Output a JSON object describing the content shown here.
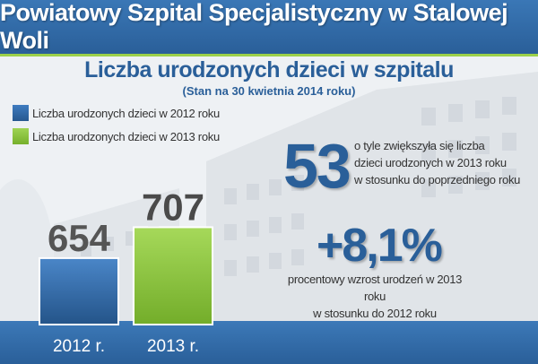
{
  "header": {
    "title": "Powiatowy Szpital Specjalistyczny w  Stalowej Woli"
  },
  "chart_data": {
    "type": "bar",
    "title": "Liczba urodzonych dzieci w szpitalu",
    "subtitle": "(Stan na 30 kwietnia 2014 roku)",
    "categories": [
      "2012 r.",
      "2013 r."
    ],
    "series": [
      {
        "name": "Liczba urodzonych dzieci w 2012 roku",
        "values": [
          654,
          null
        ],
        "color": "#2f69ad"
      },
      {
        "name": "Liczba urodzonych dzieci w 2013 roku",
        "values": [
          null,
          707
        ],
        "color": "#8cc63f"
      }
    ],
    "values": [
      654,
      707
    ],
    "colors": [
      "#2f69ad",
      "#8cc63f"
    ],
    "value_label_colors": [
      "#555555",
      "#4a4a4a"
    ],
    "ylim": [
      540,
      720
    ],
    "grid": false,
    "legend": "top-left"
  },
  "legend": {
    "items": [
      {
        "label": "Liczba urodzonych dzieci w 2012 roku",
        "color": "#2f69ad"
      },
      {
        "label": "Liczba urodzonych dzieci w 2013 roku",
        "color": "#8cc63f"
      }
    ]
  },
  "stats": {
    "difference": {
      "value": "53",
      "text_lines": [
        "o tyle zwiększyła się liczba",
        "dzieci urodzonych w 2013 roku",
        "w stosunku do poprzedniego roku"
      ]
    },
    "growth": {
      "value": "+8,1%",
      "text_lines": [
        "procentowy wzrost urodzeń w 2013 roku",
        "w stosunku do 2012 roku"
      ]
    }
  },
  "colors": {
    "header": "#2a5f99",
    "accent_green": "#8cc63f",
    "title_blue": "#2a5f99"
  }
}
